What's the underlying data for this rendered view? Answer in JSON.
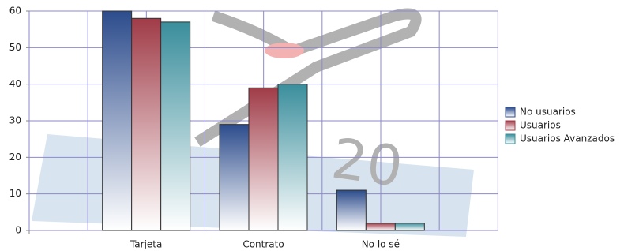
{
  "chart_data": {
    "type": "bar",
    "categories": [
      "Tarjeta",
      "Contrato",
      "No lo sé"
    ],
    "series": [
      {
        "name": "No usuarios",
        "color": "#2c4c8c",
        "values": [
          60,
          29,
          11
        ]
      },
      {
        "name": "Usuarios",
        "color": "#a03c48",
        "values": [
          58,
          39,
          2
        ]
      },
      {
        "name": "Usuarios Avanzados",
        "color": "#3a8e9c",
        "values": [
          57,
          40,
          2
        ]
      }
    ],
    "ylim": [
      0,
      60
    ],
    "yticks": [
      0,
      10,
      20,
      30,
      40,
      50,
      60
    ],
    "grid": true,
    "legend": "right"
  }
}
